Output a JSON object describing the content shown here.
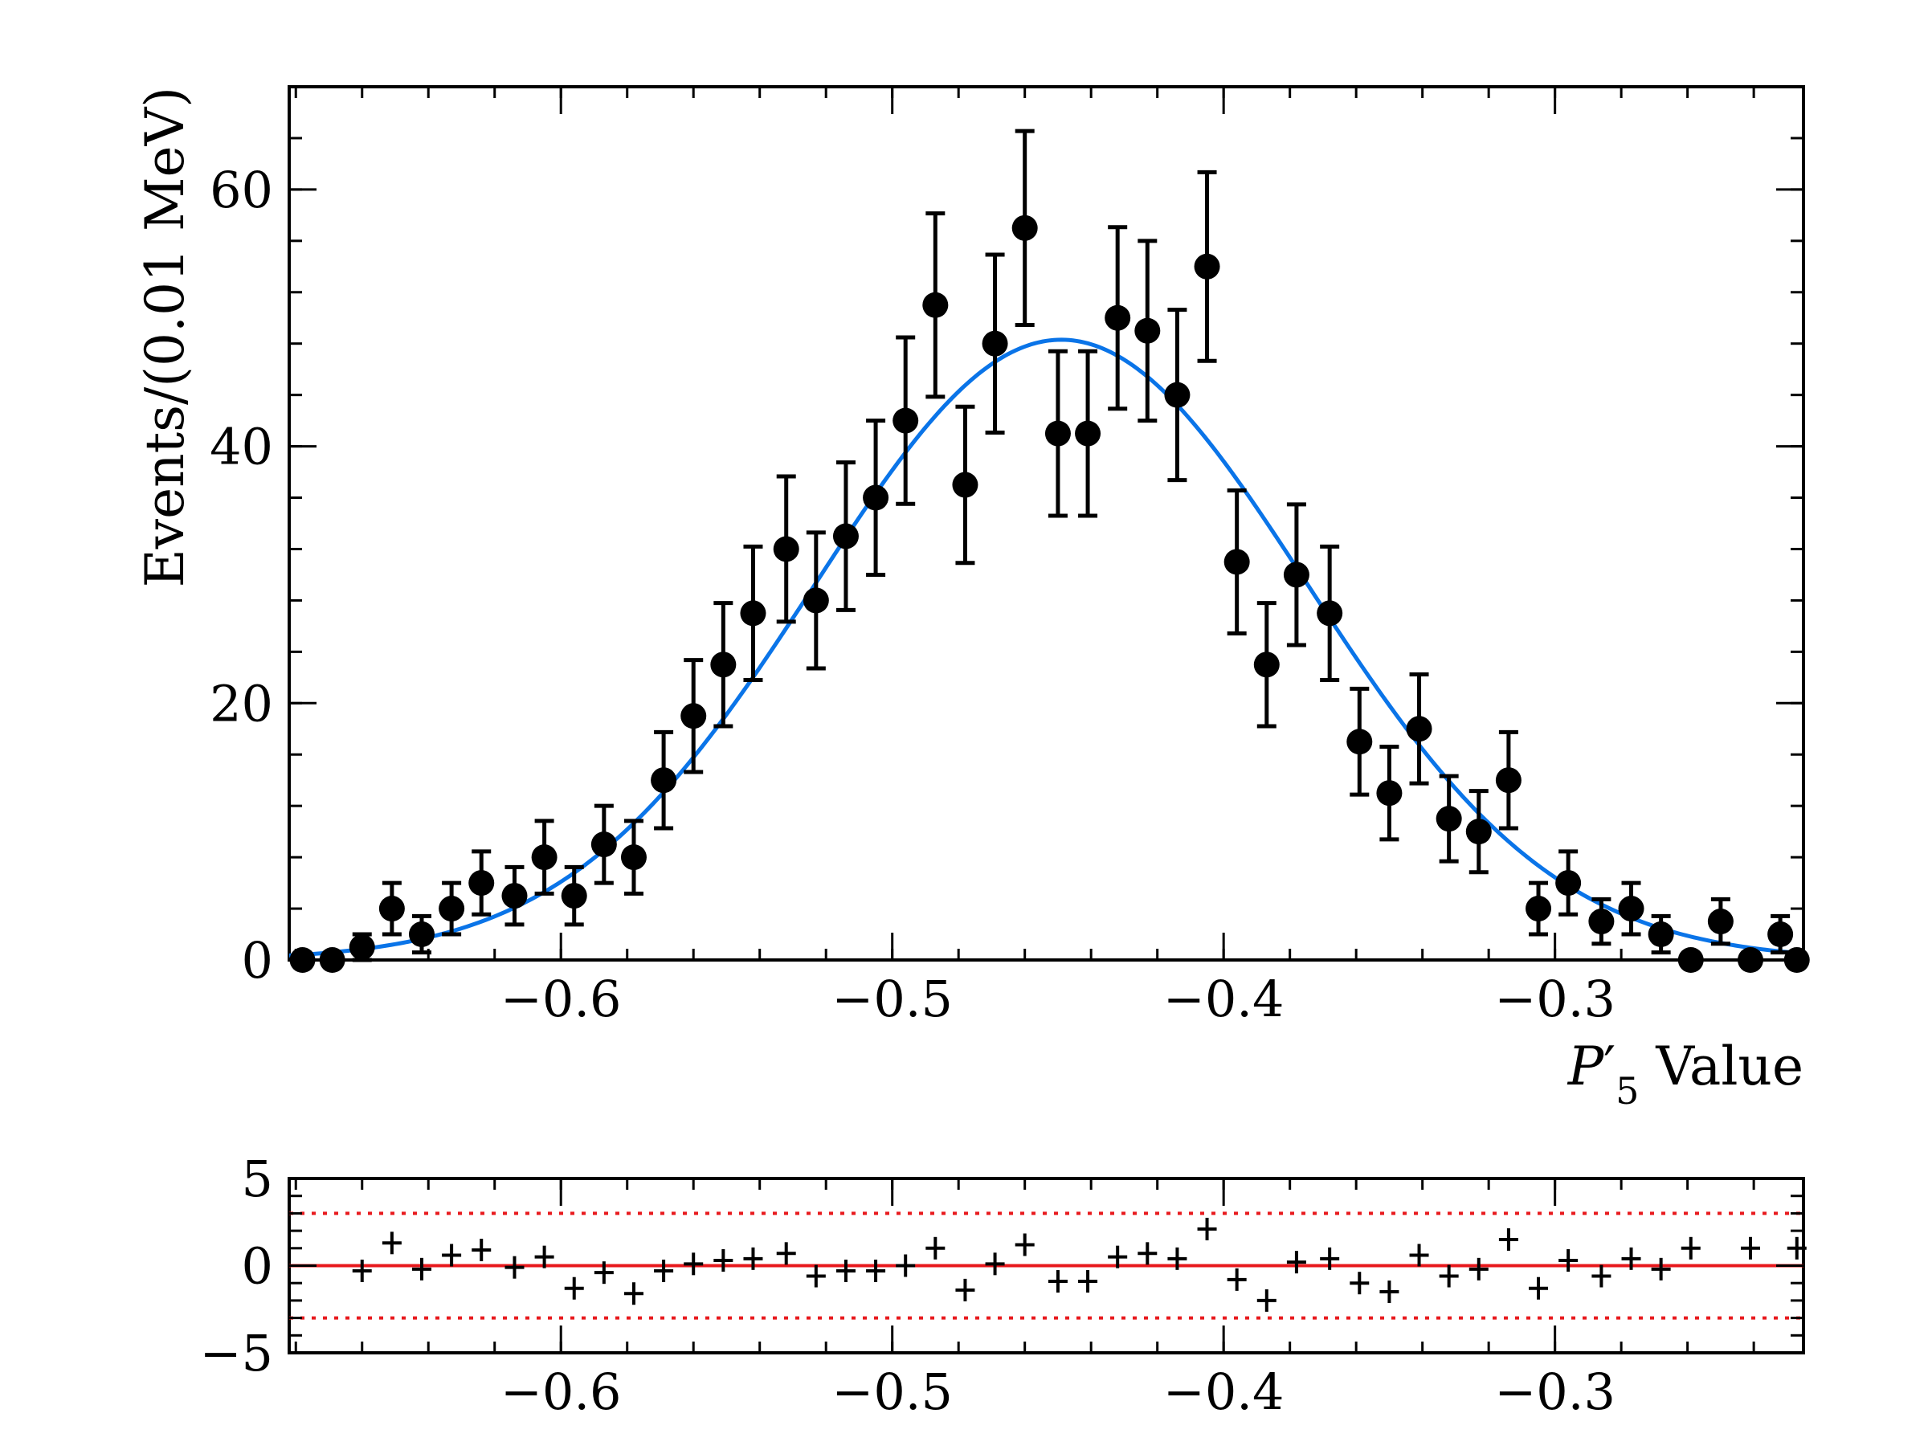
{
  "chart_data": [
    {
      "type": "scatter",
      "title": "",
      "ylabel": "Events/(0.01 MeV)",
      "xlabel": {
        "symbol": "P",
        "prime": "′",
        "subscript": "5",
        "suffix": " Value"
      },
      "xlim": [
        -0.682,
        -0.225
      ],
      "ylim": [
        0,
        68
      ],
      "xticks": [
        -0.6,
        -0.5,
        -0.4,
        -0.3
      ],
      "xtick_labels": [
        "−0.6",
        "−0.5",
        "−0.4",
        "−0.3"
      ],
      "yticks": [
        0,
        20,
        40,
        60
      ],
      "ytick_labels": [
        "0",
        "20",
        "40",
        "60"
      ],
      "grid": false,
      "legend": "none",
      "series": [
        {
          "kind": "data-points-with-errors",
          "color": "#000000",
          "x": [
            -0.678,
            -0.669,
            -0.66,
            -0.651,
            -0.642,
            -0.633,
            -0.624,
            -0.614,
            -0.605,
            -0.596,
            -0.587,
            -0.578,
            -0.569,
            -0.56,
            -0.551,
            -0.542,
            -0.532,
            -0.523,
            -0.514,
            -0.505,
            -0.496,
            -0.487,
            -0.478,
            -0.469,
            -0.46,
            -0.45,
            -0.441,
            -0.432,
            -0.423,
            -0.414,
            -0.405,
            -0.396,
            -0.387,
            -0.378,
            -0.368,
            -0.359,
            -0.35,
            -0.341,
            -0.332,
            -0.323,
            -0.314,
            -0.305,
            -0.296,
            -0.286,
            -0.277,
            -0.268,
            -0.259,
            -0.25,
            -0.241,
            -0.232,
            -0.227
          ],
          "y": [
            0,
            0,
            1,
            4,
            2,
            4,
            6,
            5,
            8,
            5,
            9,
            8,
            14,
            19,
            23,
            27,
            32,
            28,
            33,
            36,
            42,
            51,
            37,
            48,
            57,
            41,
            41,
            50,
            49,
            44,
            54,
            31,
            23,
            30,
            27,
            17,
            13,
            18,
            11,
            10,
            14,
            4,
            6,
            3,
            4,
            2,
            0,
            3,
            0,
            2,
            0
          ]
        },
        {
          "kind": "fit-curve",
          "color": "#0a74e8",
          "model": "gaussian",
          "amplitude": 48.3,
          "mean": -0.449,
          "sigma": 0.0742
        }
      ]
    },
    {
      "type": "scatter",
      "title": "",
      "ylabel": "",
      "xlabel": "",
      "xlim": [
        -0.682,
        -0.225
      ],
      "ylim": [
        -5,
        5
      ],
      "xticks": [
        -0.6,
        -0.5,
        -0.4,
        -0.3
      ],
      "xtick_labels": [
        "−0.6",
        "−0.5",
        "−0.4",
        "−0.3"
      ],
      "yticks": [
        -5,
        0,
        5
      ],
      "ytick_labels": [
        "−5",
        "0",
        "5"
      ],
      "grid": false,
      "legend": "none",
      "reference_lines": {
        "zero": 0,
        "bands": [
          -3,
          3
        ],
        "color": "#e8191d"
      },
      "series": [
        {
          "kind": "pull-points",
          "color": "#000000",
          "x": [
            -0.66,
            -0.651,
            -0.642,
            -0.633,
            -0.624,
            -0.614,
            -0.605,
            -0.596,
            -0.587,
            -0.578,
            -0.569,
            -0.56,
            -0.551,
            -0.542,
            -0.532,
            -0.523,
            -0.514,
            -0.505,
            -0.496,
            -0.487,
            -0.478,
            -0.469,
            -0.46,
            -0.45,
            -0.441,
            -0.432,
            -0.423,
            -0.414,
            -0.405,
            -0.396,
            -0.387,
            -0.378,
            -0.368,
            -0.359,
            -0.35,
            -0.341,
            -0.332,
            -0.323,
            -0.314,
            -0.305,
            -0.296,
            -0.286,
            -0.277,
            -0.268,
            -0.259,
            -0.241,
            -0.227
          ],
          "y": [
            -0.3,
            1.3,
            -0.2,
            0.6,
            0.9,
            -0.1,
            0.5,
            -1.3,
            -0.4,
            -1.6,
            -0.3,
            0.1,
            0.3,
            0.4,
            0.7,
            -0.6,
            -0.3,
            -0.3,
            0.0,
            1.0,
            -1.4,
            0.1,
            1.2,
            -0.9,
            -0.9,
            0.5,
            0.7,
            0.4,
            2.1,
            -0.8,
            -2.0,
            0.2,
            0.4,
            -1.0,
            -1.5,
            0.6,
            -0.6,
            -0.2,
            1.5,
            -1.3,
            0.3,
            -0.6,
            0.4,
            -0.2,
            1.0,
            1.0,
            1.0
          ]
        }
      ]
    }
  ]
}
